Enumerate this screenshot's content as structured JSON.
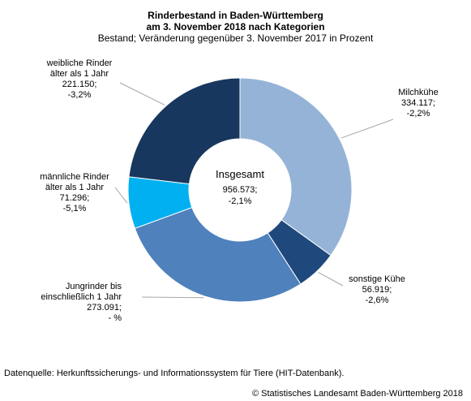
{
  "header": {
    "title_lines": [
      "Rinderbestand in Baden-Württemberg",
      "am 3. November 2018 nach Kategorien"
    ],
    "subtitle": "Bestand; Veränderung gegenüber 3. November 2017 in Prozent"
  },
  "chart_data": {
    "type": "pie",
    "donut": true,
    "center_label": [
      "Insgesamt",
      "956.573;",
      "-2,1%"
    ],
    "total": 956573,
    "total_change_percent": "-2,1%",
    "slices": [
      {
        "name": "Milchkühe",
        "value": 334117,
        "value_text": "334.117;",
        "change": "-2,2%",
        "color": "#95b3d7"
      },
      {
        "name": "sonstige Kühe",
        "value": 56919,
        "value_text": "56.919;",
        "change": "-2,6%",
        "color": "#1f497d"
      },
      {
        "name": "Jungrinder bis einschließlich 1 Jahr",
        "value": 273091,
        "value_text": "273.091;",
        "change": "- %",
        "color": "#4f81bd"
      },
      {
        "name": "männliche Rinder älter als 1 Jahr",
        "value": 71296,
        "value_text": "71.296;",
        "change": "-5,1%",
        "color": "#00b0f0"
      },
      {
        "name": "weibliche Rinder älter als 1 Jahr",
        "value": 221150,
        "value_text": "221.150;",
        "change": "-3,2%",
        "color": "#17375e"
      }
    ],
    "label_lines": [
      [
        "Milchkühe",
        "334.117;",
        "-2,2%"
      ],
      [
        "sonstige Kühe",
        "56.919;",
        "-2,6%"
      ],
      [
        "Jungrinder bis",
        "einschließlich 1 Jahr",
        "273.091;",
        "- %"
      ],
      [
        "männliche Rinder",
        "älter als 1 Jahr",
        "71.296;",
        "-5,1%"
      ],
      [
        "weibliche Rinder",
        "älter als 1 Jahr",
        "221.150;",
        "-3,2%"
      ]
    ]
  },
  "footer": {
    "source": "Datenquelle: Herkunftssicherungs- und Informationssystem für Tiere (HIT-Datenbank).",
    "copyright": "© Statistisches Landesamt Baden-Württemberg 2018"
  }
}
